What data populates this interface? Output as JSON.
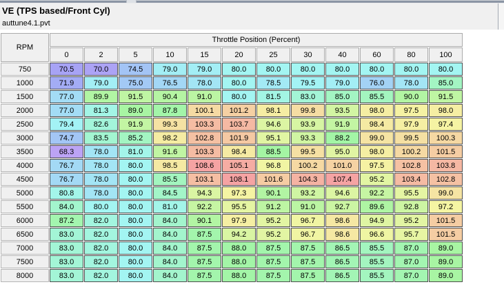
{
  "window": {
    "title": "VE (TPS based/Front Cyl)",
    "filename": "auttune4.1.pvt"
  },
  "table": {
    "row_header_label": "RPM",
    "group_header": "Throttle Position (Percent)",
    "col_headers": [
      "0",
      "2",
      "5",
      "10",
      "15",
      "20",
      "25",
      "30",
      "40",
      "60",
      "80",
      "100"
    ],
    "rows": [
      {
        "rpm": "750",
        "values": [
          70.5,
          70.0,
          74.5,
          79.0,
          79.0,
          80.0,
          80.0,
          80.0,
          80.0,
          80.0,
          80.0,
          80.0
        ]
      },
      {
        "rpm": "1000",
        "values": [
          71.9,
          79.0,
          75.0,
          76.5,
          78.0,
          80.0,
          78.5,
          79.5,
          79.0,
          76.0,
          78.0,
          85.0
        ]
      },
      {
        "rpm": "1500",
        "values": [
          77.0,
          89.9,
          91.5,
          90.4,
          91.0,
          80.0,
          81.5,
          83.0,
          85.0,
          85.5,
          90.0,
          91.5
        ]
      },
      {
        "rpm": "2000",
        "values": [
          77.0,
          81.3,
          89.0,
          87.8,
          100.1,
          101.2,
          98.1,
          99.8,
          93.5,
          98.0,
          97.5,
          98.0
        ]
      },
      {
        "rpm": "2500",
        "values": [
          79.4,
          82.6,
          91.9,
          99.3,
          103.3,
          103.7,
          94.6,
          93.9,
          91.9,
          98.4,
          97.9,
          97.4
        ]
      },
      {
        "rpm": "3000",
        "values": [
          74.7,
          83.5,
          85.2,
          98.2,
          102.8,
          101.9,
          95.1,
          93.3,
          88.2,
          99.0,
          99.5,
          100.3
        ]
      },
      {
        "rpm": "3500",
        "values": [
          68.3,
          78.0,
          81.0,
          91.6,
          103.3,
          98.4,
          88.5,
          99.5,
          95.0,
          98.0,
          100.2,
          101.5
        ]
      },
      {
        "rpm": "4000",
        "values": [
          76.7,
          78.0,
          80.0,
          98.5,
          108.6,
          105.1,
          96.8,
          100.2,
          101.0,
          97.5,
          102.8,
          103.8
        ]
      },
      {
        "rpm": "4500",
        "values": [
          76.7,
          78.0,
          80.0,
          85.5,
          103.1,
          108.1,
          101.6,
          104.3,
          107.4,
          95.2,
          103.4,
          102.8
        ]
      },
      {
        "rpm": "5000",
        "values": [
          80.8,
          78.0,
          80.0,
          84.5,
          94.3,
          97.3,
          90.1,
          93.2,
          94.6,
          92.2,
          95.5,
          99.0
        ]
      },
      {
        "rpm": "5500",
        "values": [
          84.0,
          80.0,
          80.0,
          81.0,
          92.2,
          95.5,
          91.2,
          91.0,
          92.7,
          89.6,
          92.8,
          97.2
        ]
      },
      {
        "rpm": "6000",
        "values": [
          87.2,
          82.0,
          80.0,
          84.0,
          90.1,
          97.9,
          95.2,
          96.7,
          98.6,
          94.9,
          95.2,
          101.5
        ]
      },
      {
        "rpm": "6500",
        "values": [
          83.0,
          82.0,
          80.0,
          84.0,
          87.5,
          94.2,
          95.2,
          96.7,
          98.6,
          96.6,
          95.7,
          101.5
        ]
      },
      {
        "rpm": "7000",
        "values": [
          83.0,
          82.0,
          80.0,
          84.0,
          87.5,
          88.0,
          87.5,
          87.5,
          86.5,
          85.5,
          87.0,
          89.0
        ]
      },
      {
        "rpm": "7500",
        "values": [
          83.0,
          82.0,
          80.0,
          84.0,
          87.5,
          88.0,
          87.5,
          87.5,
          86.5,
          85.5,
          87.0,
          89.0
        ]
      },
      {
        "rpm": "8000",
        "values": [
          83.0,
          82.0,
          80.0,
          84.0,
          87.5,
          88.0,
          87.5,
          87.5,
          86.5,
          85.5,
          87.0,
          89.0
        ]
      }
    ]
  },
  "heatmap": {
    "min_value": 68,
    "max_value": 106,
    "hue_at_min": 260,
    "hue_at_max": 0,
    "saturation_pct": 80,
    "lightness_pct": 80
  },
  "colors": {
    "panel_bg": "#f0f0f0",
    "header_cell_bg": "#f0f0f0",
    "data_cell_border": "#4d4d4d",
    "top_strip_dark": "#8b95a4"
  }
}
